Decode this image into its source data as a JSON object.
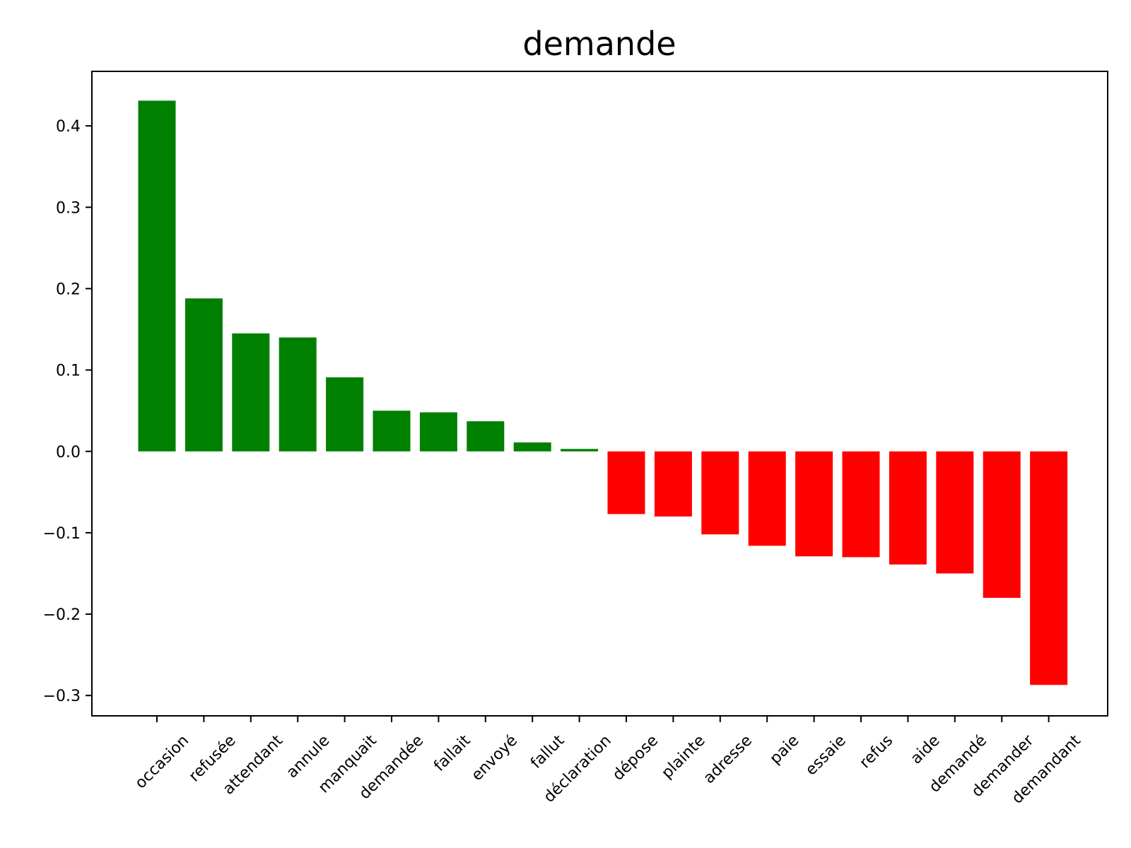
{
  "chart_data": {
    "type": "bar",
    "title": "demande",
    "xlabel": "",
    "ylabel": "",
    "ylim": [
      -0.325,
      0.467
    ],
    "yticks": [
      -0.3,
      -0.2,
      -0.1,
      0.0,
      0.1,
      0.2,
      0.3,
      0.4
    ],
    "ytick_labels": [
      "−0.3",
      "−0.2",
      "−0.1",
      "0.0",
      "0.1",
      "0.2",
      "0.3",
      "0.4"
    ],
    "grid": false,
    "colors": {
      "positive": "#008000",
      "negative": "#ff0000"
    },
    "categories": [
      "occasion",
      "refusée",
      "attendant",
      "annule",
      "manquait",
      "demandée",
      "fallait",
      "envoyé",
      "fallut",
      "déclaration",
      "dépose",
      "plainte",
      "adresse",
      "paie",
      "essaie",
      "refus",
      "aide",
      "demandé",
      "demander",
      "demandant"
    ],
    "values": [
      0.431,
      0.188,
      0.145,
      0.14,
      0.091,
      0.05,
      0.048,
      0.037,
      0.011,
      0.003,
      -0.077,
      -0.08,
      -0.102,
      -0.116,
      -0.129,
      -0.13,
      -0.139,
      -0.15,
      -0.18,
      -0.287
    ]
  }
}
